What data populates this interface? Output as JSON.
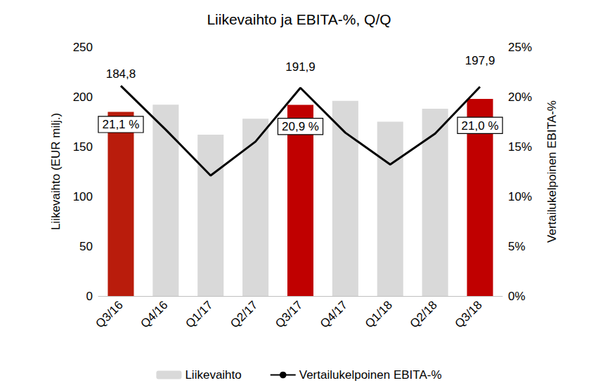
{
  "chart_data": {
    "type": "bar",
    "title": "Liikevaihto ja EBITA-%, Q/Q",
    "categories": [
      "Q3/16",
      "Q4/16",
      "Q1/17",
      "Q2/17",
      "Q3/17",
      "Q4/17",
      "Q1/18",
      "Q2/18",
      "Q3/18"
    ],
    "y_label": "Liikevaihto (EUR milj.)",
    "y2_label": "Vertailukelpoinen EBITA-%",
    "ylim": [
      0,
      250
    ],
    "yticks": [
      0,
      50,
      100,
      150,
      200,
      250
    ],
    "y2lim": [
      0,
      25
    ],
    "y2ticks": [
      {
        "value": 0,
        "label": "0%"
      },
      {
        "value": 5,
        "label": "5%"
      },
      {
        "value": 10,
        "label": "10%"
      },
      {
        "value": 15,
        "label": "15%"
      },
      {
        "value": 20,
        "label": "20%"
      },
      {
        "value": 25,
        "label": "25%"
      }
    ],
    "grid": false,
    "legend": "bottom",
    "series": [
      {
        "name": "Liikevaihto",
        "type": "bar",
        "color": "#d9d9d9",
        "colors": [
          "#b91c0c",
          "#d9d9d9",
          "#d9d9d9",
          "#d9d9d9",
          "#c00000",
          "#d9d9d9",
          "#d9d9d9",
          "#d9d9d9",
          "#c00000"
        ],
        "values": [
          184.8,
          192,
          162,
          178,
          191.9,
          196,
          175,
          188,
          197.9
        ],
        "value_labels": [
          "184,8",
          null,
          null,
          null,
          "191,9",
          null,
          null,
          null,
          "197,9"
        ],
        "data_labels": true
      },
      {
        "name": "Vertailukelpoinen EBITA-%",
        "type": "line",
        "axis": "y2",
        "color": "#000000",
        "values": [
          21.1,
          16.7,
          12.1,
          15.5,
          20.9,
          16.4,
          13.2,
          16.3,
          21.0
        ],
        "value_labels": [
          "21,1 %",
          null,
          null,
          null,
          "20,9 %",
          null,
          null,
          null,
          "21,0 %"
        ],
        "data_labels": true
      }
    ]
  }
}
